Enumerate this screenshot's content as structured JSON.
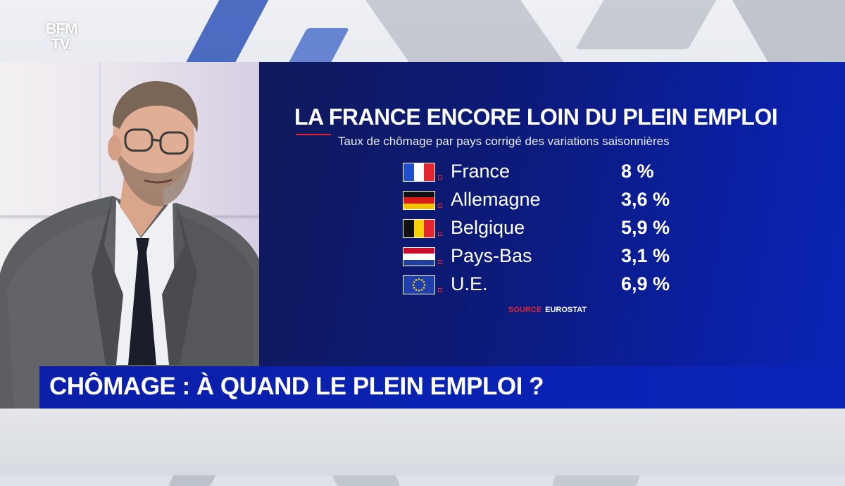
{
  "logo": {
    "line1": "BFM",
    "line2": "TV."
  },
  "graphic": {
    "title": "LA FRANCE ENCORE LOIN DU PLEIN EMPLOI",
    "subtitle": "Taux de chômage par pays corrigé des variations saisonnières",
    "rows": [
      {
        "country": "France",
        "rate": "8 %",
        "flag": "france-flag-icon",
        "flag_colors": [
          "#1f4fd0",
          "#ffffff",
          "#e3262f"
        ]
      },
      {
        "country": "Allemagne",
        "rate": "3,6 %",
        "flag": "germany-flag-icon",
        "flag_colors": [
          "#111111",
          "#dd1a1a",
          "#f5c400"
        ]
      },
      {
        "country": "Belgique",
        "rate": "5,9 %",
        "flag": "belgium-flag-icon",
        "flag_colors": [
          "#111111",
          "#f5d20a",
          "#e3262f"
        ]
      },
      {
        "country": "Pays-Bas",
        "rate": "3,1 %",
        "flag": "netherlands-flag-icon",
        "flag_colors": [
          "#c8102e",
          "#ffffff",
          "#1e3f9c"
        ]
      },
      {
        "country": "U.E.",
        "rate": "6,9 %",
        "flag": "eu-flag-icon",
        "flag_colors": [
          "#1f3fae",
          "#f5d20a"
        ]
      }
    ],
    "source_label": "SOURCE",
    "source_value": "EUROSTAT"
  },
  "headline": "CHÔMAGE : À QUAND LE PLEIN EMPLOI ?",
  "colors": {
    "accent_red": "#e3262f",
    "graphic_blue": "#0a1fa0",
    "headline_blue": "#0b1fa8"
  }
}
